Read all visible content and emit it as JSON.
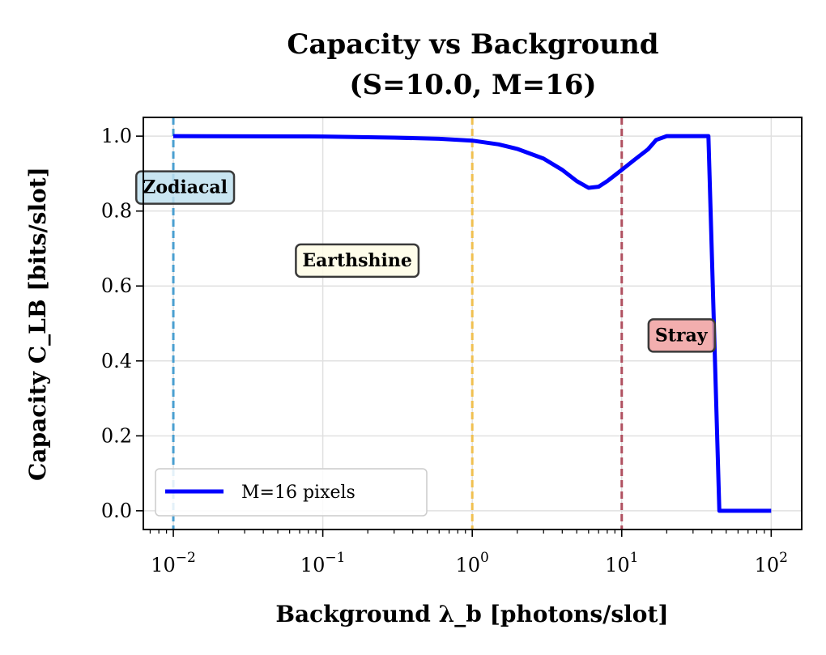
{
  "chart_data": {
    "type": "line",
    "title": [
      "Capacity vs Background",
      "(S=10.0, M=16)"
    ],
    "xlabel": "Background λ_b [photons/slot]",
    "ylabel": "Capacity C_LB [bits/slot]",
    "xscale": "log",
    "xlim": [
      0.0063,
      160
    ],
    "ylim": [
      -0.05,
      1.05
    ],
    "x_ticks": [
      {
        "base": "10",
        "exp": "−2",
        "value": 0.01
      },
      {
        "base": "10",
        "exp": "−1",
        "value": 0.1
      },
      {
        "base": "10",
        "exp": "0",
        "value": 1
      },
      {
        "base": "10",
        "exp": "1",
        "value": 10
      },
      {
        "base": "10",
        "exp": "2",
        "value": 100
      }
    ],
    "y_ticks": [
      {
        "label": "0.0",
        "value": 0.0
      },
      {
        "label": "0.2",
        "value": 0.2
      },
      {
        "label": "0.4",
        "value": 0.4
      },
      {
        "label": "0.6",
        "value": 0.6
      },
      {
        "label": "0.8",
        "value": 0.8
      },
      {
        "label": "1.0",
        "value": 1.0
      }
    ],
    "grid": true,
    "legend_position": "lower-left",
    "series": [
      {
        "name": "M=16 pixels",
        "color": "#0000ff",
        "x": [
          0.01,
          0.1,
          0.3,
          0.6,
          1.0,
          1.5,
          2.0,
          3.0,
          4.0,
          5.0,
          6.0,
          7.0,
          8.0,
          10.0,
          12.0,
          15.0,
          17.0,
          20.0,
          25.0,
          30.0,
          38.0,
          45.0,
          60.0,
          100.0
        ],
        "y": [
          1.0,
          0.999,
          0.996,
          0.993,
          0.988,
          0.978,
          0.966,
          0.94,
          0.91,
          0.88,
          0.862,
          0.865,
          0.88,
          0.91,
          0.935,
          0.965,
          0.99,
          1.0,
          1.0,
          1.0,
          1.0,
          0.0,
          0.0,
          0.0
        ]
      }
    ],
    "vlines": [
      {
        "x": 0.01,
        "color": "#4a9fd0",
        "label": "Zodiacal",
        "box_color": "#bfe0ee",
        "label_x": 0.012,
        "label_y": 0.865
      },
      {
        "x": 1.0,
        "color": "#f0c050",
        "label": "Earthshine",
        "box_color": "#fffde6",
        "label_x": 0.17,
        "label_y": 0.67
      },
      {
        "x": 10.0,
        "color": "#b05060",
        "label": "Stray",
        "box_color": "#f0a0a0",
        "label_x": 25,
        "label_y": 0.47
      }
    ]
  }
}
